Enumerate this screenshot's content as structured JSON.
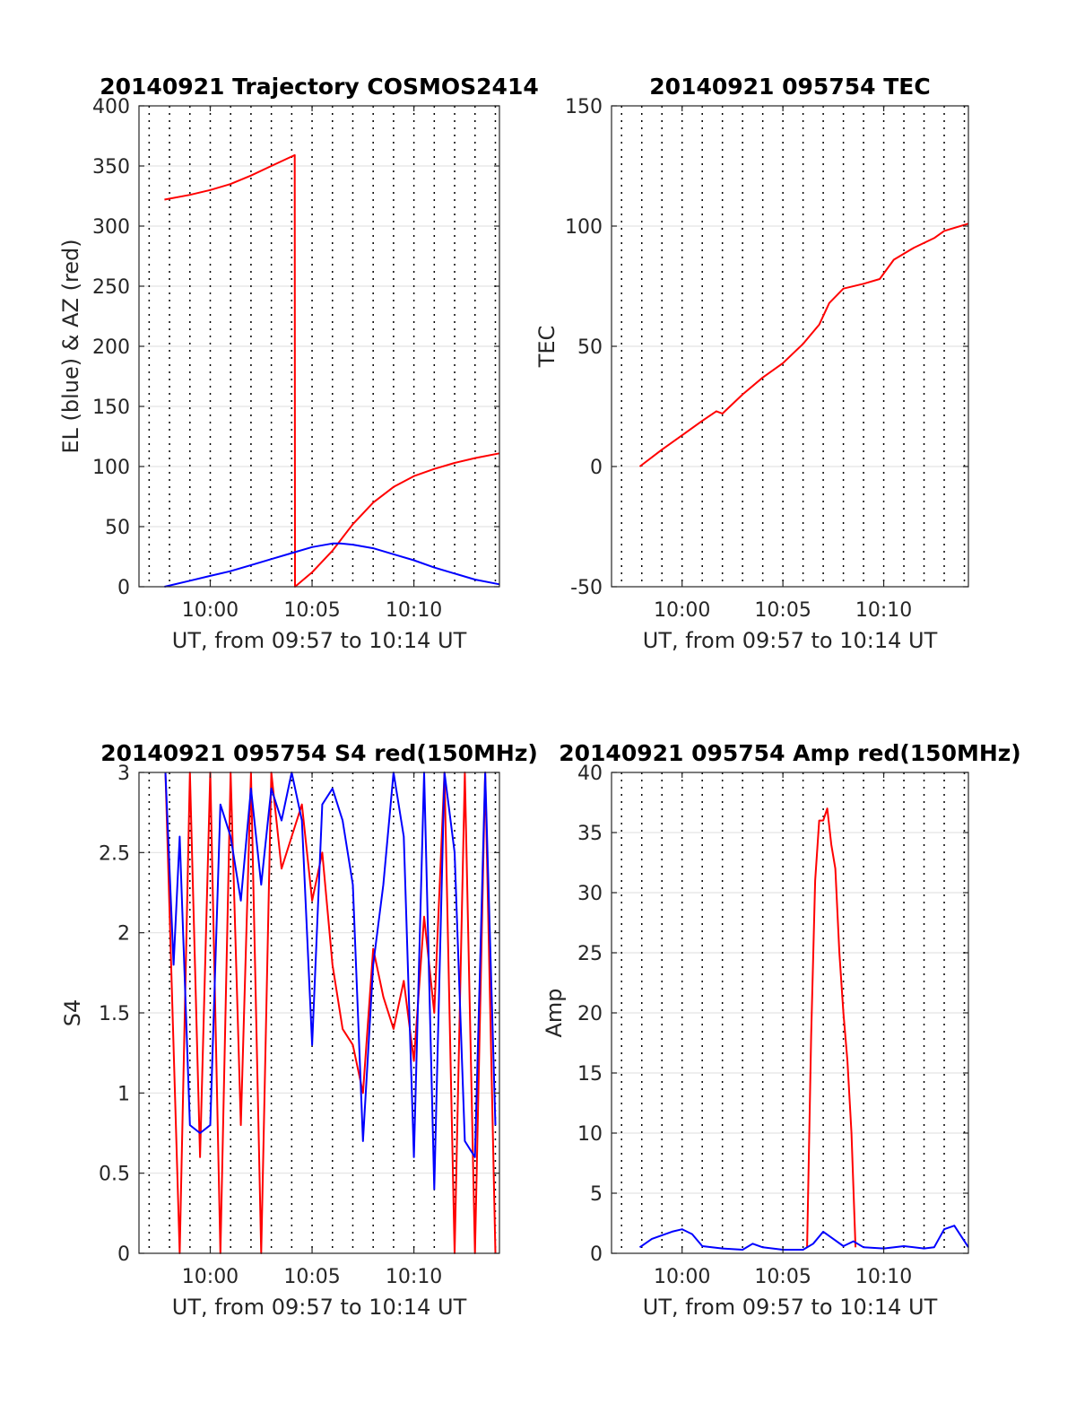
{
  "colors": {
    "red": "#ff0000",
    "blue": "#0000ff",
    "axis": "#262626",
    "grid": "#e3e3e3"
  },
  "chart_data": [
    {
      "type": "line",
      "title": "20140921 Trajectory COSMOS2414",
      "xlabel": "UT, from 09:57 to 10:14 UT",
      "ylabel": "EL (blue) & AZ (red)",
      "x_unit": "minutes after 10:00 UT",
      "xlim": [
        -3.5,
        14.2
      ],
      "ylim": [
        0,
        400
      ],
      "x_ticks": [
        0,
        5,
        10
      ],
      "x_tick_labels": [
        "10:00",
        "10:05",
        "10:10"
      ],
      "y_ticks": [
        0,
        50,
        100,
        150,
        200,
        250,
        300,
        350,
        400
      ],
      "y_tick_labels": [
        "0",
        "50",
        "100",
        "150",
        "200",
        "250",
        "300",
        "350",
        "400"
      ],
      "grid": "dotted vertical lines every minute, faint horizontal lines at y ticks",
      "series": [
        {
          "color": "red",
          "x": [
            -2.25,
            -1,
            0,
            1,
            2,
            3,
            4.15,
            4.16,
            5,
            6,
            7,
            8,
            9,
            10,
            11,
            12,
            13,
            14.2
          ],
          "y": [
            322,
            326,
            330,
            335,
            342,
            350,
            359,
            0,
            12,
            30,
            52,
            70,
            83,
            92,
            98,
            103,
            107,
            111
          ]
        },
        {
          "color": "blue",
          "x": [
            -2.25,
            -1,
            0,
            1,
            2,
            3,
            4,
            5,
            6,
            6.4,
            7,
            8,
            9,
            10,
            11,
            12,
            13,
            14.2
          ],
          "y": [
            0,
            5,
            9,
            13,
            18,
            23,
            28,
            33,
            36,
            36,
            35,
            32,
            27,
            22,
            16,
            11,
            6,
            2
          ]
        }
      ]
    },
    {
      "type": "line",
      "title": "20140921 095754 TEC",
      "xlabel": "UT, from 09:57 to 10:14 UT",
      "ylabel": "TEC",
      "x_unit": "minutes after 10:00 UT",
      "xlim": [
        -3.5,
        14.2
      ],
      "ylim": [
        -50,
        150
      ],
      "x_ticks": [
        0,
        5,
        10
      ],
      "x_tick_labels": [
        "10:00",
        "10:05",
        "10:10"
      ],
      "y_ticks": [
        -50,
        0,
        50,
        100,
        150
      ],
      "y_tick_labels": [
        "-50",
        "0",
        "50",
        "100",
        "150"
      ],
      "grid": "dotted vertical lines every minute, faint horizontal lines at y ticks",
      "series": [
        {
          "color": "red",
          "x": [
            -2.1,
            -1,
            0,
            1,
            1.7,
            2,
            3,
            4,
            5,
            6,
            6.8,
            7.3,
            8,
            9,
            9.8,
            10.5,
            11.5,
            12.5,
            13,
            14.2
          ],
          "y": [
            0,
            7,
            13,
            19,
            23,
            22,
            30,
            37,
            43,
            51,
            59,
            68,
            74,
            76,
            78,
            86,
            91,
            95,
            98,
            101
          ]
        }
      ]
    },
    {
      "type": "line",
      "title": "20140921 095754 S4 red(150MHz)",
      "xlabel": "UT, from 09:57 to 10:14 UT",
      "ylabel": "S4",
      "x_unit": "minutes after 10:00 UT",
      "xlim": [
        -3.5,
        14.2
      ],
      "ylim": [
        0,
        3
      ],
      "x_ticks": [
        0,
        5,
        10
      ],
      "x_tick_labels": [
        "10:00",
        "10:05",
        "10:10"
      ],
      "y_ticks": [
        0,
        0.5,
        1,
        1.5,
        2,
        2.5,
        3
      ],
      "y_tick_labels": [
        "0",
        "0.5",
        "1",
        "1.5",
        "2",
        "2.5",
        "3"
      ],
      "grid": "dotted vertical lines every minute, faint horizontal lines at y ticks",
      "note": "highly noisy; values clipped at 3",
      "series": [
        {
          "color": "red",
          "x": [
            -2.2,
            -1.5,
            -1,
            -0.5,
            0,
            0.5,
            1,
            1.5,
            2,
            2.5,
            3,
            3.5,
            4,
            4.5,
            5,
            5.5,
            6,
            6.5,
            7,
            7.5,
            8,
            8.5,
            9,
            9.5,
            10,
            10.5,
            11,
            11.5,
            12,
            12.5,
            13,
            13.5,
            14
          ],
          "y": [
            3,
            0,
            3,
            0.6,
            3,
            0,
            3,
            0.8,
            3,
            0,
            3,
            2.4,
            2.6,
            2.8,
            2.2,
            2.5,
            1.8,
            1.4,
            1.3,
            1.0,
            1.9,
            1.6,
            1.4,
            1.7,
            1.2,
            2.1,
            1.5,
            3,
            0,
            3,
            0,
            3,
            0
          ]
        },
        {
          "color": "blue",
          "x": [
            -2.2,
            -1.8,
            -1.5,
            -1,
            -0.5,
            0,
            0.5,
            1,
            1.5,
            2,
            2.5,
            3,
            3.5,
            4,
            4.5,
            5,
            5.5,
            6,
            6.5,
            7,
            7.5,
            8,
            8.5,
            9,
            9.5,
            10,
            10.5,
            11,
            11.5,
            12,
            12.5,
            13,
            13.5,
            14
          ],
          "y": [
            3,
            1.8,
            2.6,
            0.8,
            0.75,
            0.8,
            2.8,
            2.6,
            2.2,
            2.9,
            2.3,
            2.9,
            2.7,
            3,
            2.7,
            1.3,
            2.8,
            2.9,
            2.7,
            2.3,
            0.7,
            1.8,
            2.3,
            3,
            2.6,
            0.6,
            3,
            0.4,
            3,
            2.5,
            0.7,
            0.6,
            3,
            0.8
          ]
        }
      ]
    },
    {
      "type": "line",
      "title": "20140921 095754 Amp red(150MHz)",
      "xlabel": "UT, from 09:57 to 10:14 UT",
      "ylabel": "Amp",
      "x_unit": "minutes after 10:00 UT",
      "xlim": [
        -3.5,
        14.2
      ],
      "ylim": [
        0,
        40
      ],
      "x_ticks": [
        0,
        5,
        10
      ],
      "x_tick_labels": [
        "10:00",
        "10:05",
        "10:10"
      ],
      "y_ticks": [
        0,
        5,
        10,
        15,
        20,
        25,
        30,
        35,
        40
      ],
      "y_tick_labels": [
        "0",
        "5",
        "10",
        "15",
        "20",
        "25",
        "30",
        "35",
        "40"
      ],
      "grid": "dotted vertical lines every minute, faint horizontal lines at y ticks",
      "series": [
        {
          "color": "red",
          "x": [
            6.2,
            6.4,
            6.6,
            6.8,
            7.0,
            7.2,
            7.4,
            7.6,
            7.8,
            8.0,
            8.2,
            8.4,
            8.6
          ],
          "y": [
            0.5,
            18,
            31,
            36,
            36,
            37,
            34,
            32,
            25,
            20,
            16,
            10,
            0.5
          ]
        },
        {
          "color": "blue",
          "x": [
            -2.1,
            -1.5,
            -1,
            -0.5,
            0,
            0.5,
            1,
            2,
            3,
            3.5,
            4,
            5,
            6,
            6.5,
            7,
            7.5,
            8,
            8.5,
            9,
            10,
            11,
            12,
            12.5,
            13,
            13.5,
            14.2
          ],
          "y": [
            0.5,
            1.2,
            1.5,
            1.8,
            2.0,
            1.6,
            0.6,
            0.4,
            0.3,
            0.8,
            0.5,
            0.3,
            0.3,
            0.8,
            1.8,
            1.2,
            0.6,
            1.0,
            0.5,
            0.4,
            0.6,
            0.4,
            0.5,
            2.0,
            2.3,
            0.5
          ]
        }
      ]
    }
  ]
}
